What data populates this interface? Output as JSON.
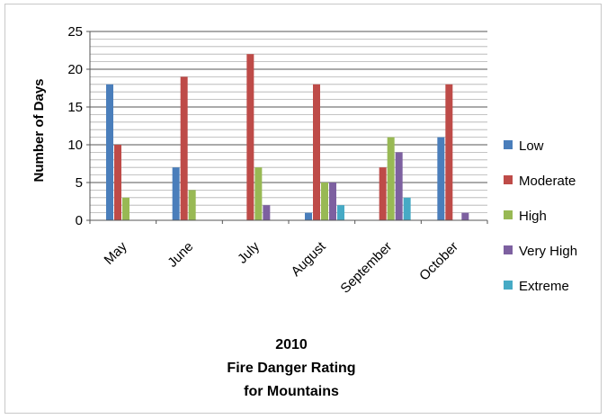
{
  "chart_data": {
    "type": "bar",
    "title_lines": [
      "2010",
      "Fire Danger Rating",
      "for Mountains"
    ],
    "xlabel": "",
    "ylabel": "Number of Days",
    "ylim": [
      0,
      25
    ],
    "yticks": [
      0,
      5,
      10,
      15,
      20,
      25
    ],
    "grid": true,
    "legend_position": "right",
    "categories": [
      "May",
      "June",
      "July",
      "August",
      "September",
      "October"
    ],
    "series": [
      {
        "name": "Low",
        "color": "#4a7ebb",
        "values": [
          18,
          7,
          0,
          1,
          0,
          11
        ]
      },
      {
        "name": "Moderate",
        "color": "#be4b48",
        "values": [
          10,
          19,
          22,
          18,
          7,
          18
        ]
      },
      {
        "name": "High",
        "color": "#98b954",
        "values": [
          3,
          4,
          7,
          5,
          11,
          0
        ]
      },
      {
        "name": "Very High",
        "color": "#7d60a0",
        "values": [
          0,
          0,
          2,
          5,
          9,
          1
        ]
      },
      {
        "name": "Extreme",
        "color": "#46aac5",
        "values": [
          0,
          0,
          0,
          2,
          3,
          0
        ]
      }
    ]
  }
}
